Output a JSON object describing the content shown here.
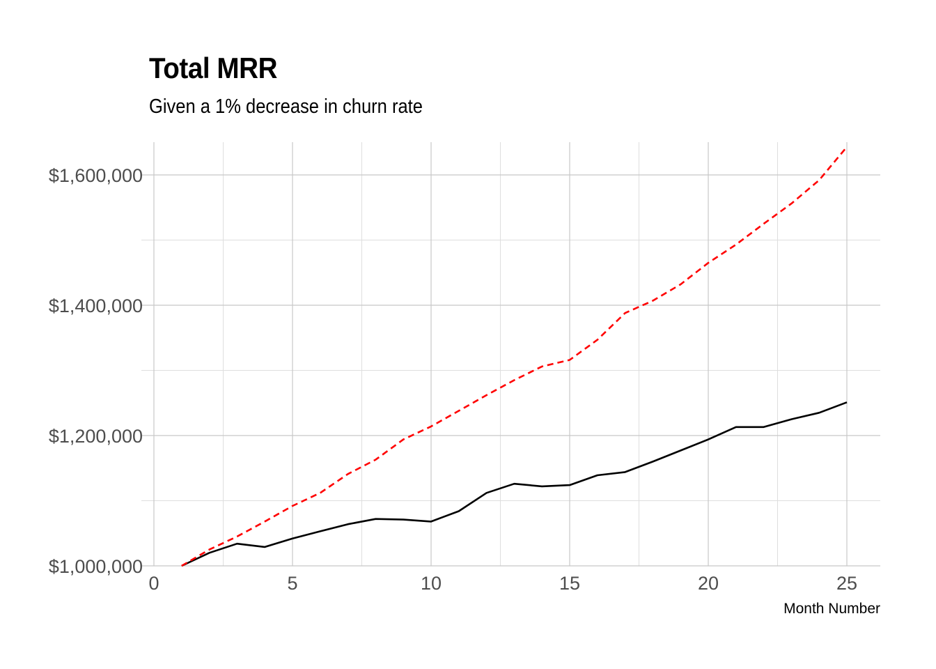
{
  "chart_data": {
    "type": "line",
    "title": "Total MRR",
    "subtitle": "Given a 1% decrease in churn rate",
    "xlabel": "Month Number",
    "ylabel": "",
    "xlim": [
      0,
      26
    ],
    "ylim": [
      1000000,
      1650000
    ],
    "x_ticks": [
      0,
      5,
      10,
      15,
      20,
      25
    ],
    "x_tick_labels": [
      "0",
      "5",
      "10",
      "15",
      "20",
      "25"
    ],
    "y_ticks": [
      1000000,
      1200000,
      1400000,
      1600000
    ],
    "y_tick_labels": [
      "$1,000,000",
      "$1,200,000",
      "$1,400,000",
      "$1,600,000"
    ],
    "x_minor_ticks": [
      2.5,
      7.5,
      12.5,
      17.5,
      22.5
    ],
    "y_minor_ticks": [
      1100000,
      1300000,
      1500000
    ],
    "grid": true,
    "legend": "none",
    "x": [
      1,
      2,
      3,
      4,
      5,
      6,
      7,
      8,
      9,
      10,
      11,
      12,
      13,
      14,
      15,
      16,
      17,
      18,
      19,
      20,
      21,
      22,
      23,
      24,
      25
    ],
    "series": [
      {
        "color": "#000000",
        "style": "solid",
        "values": [
          1000000,
          1020000,
          1034000,
          1029000,
          1042000,
          1053000,
          1064000,
          1072000,
          1071000,
          1068000,
          1084000,
          1112000,
          1126000,
          1122000,
          1124000,
          1139000,
          1144000,
          1160000,
          1177000,
          1194000,
          1213000,
          1213000,
          1225000,
          1235000,
          1251000
        ]
      },
      {
        "color": "#ff0000",
        "style": "dashed",
        "values": [
          1000000,
          1025000,
          1045000,
          1068000,
          1092000,
          1112000,
          1141000,
          1163000,
          1194000,
          1214000,
          1238000,
          1262000,
          1285000,
          1306000,
          1316000,
          1347000,
          1388000,
          1407000,
          1432000,
          1465000,
          1493000,
          1525000,
          1556000,
          1592000,
          1643000
        ]
      }
    ]
  }
}
